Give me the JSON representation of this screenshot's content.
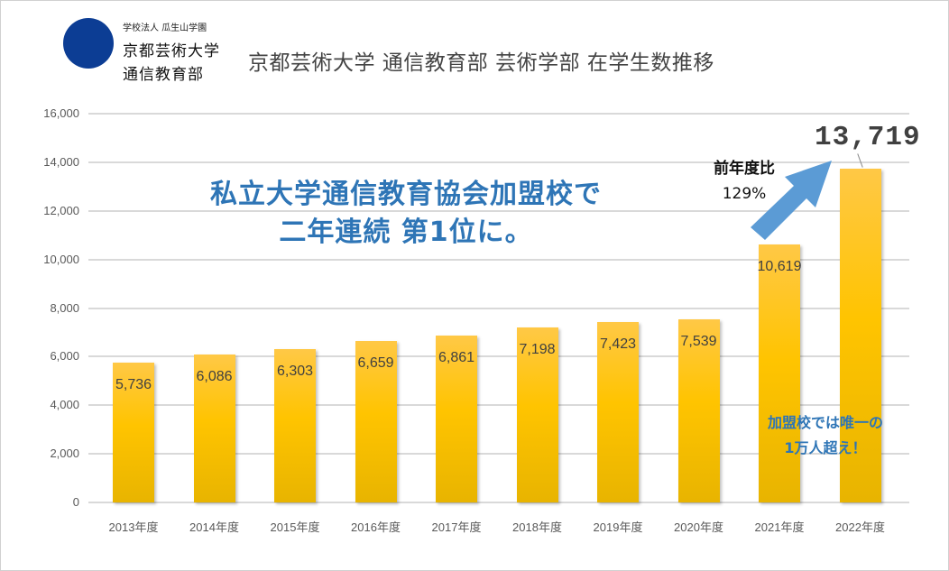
{
  "logo": {
    "small_text": "学校法人 瓜生山学園",
    "line1": "京都芸術大学",
    "line2": "通信教育部"
  },
  "title": "京都芸術大学 通信教育部 芸術学部 在学生数推移",
  "headline": {
    "line1": "私立大学通信教育協会加盟校で",
    "line2": "二年連続 第1位に。"
  },
  "ratio_callout": {
    "title": "前年度比",
    "value": "129%"
  },
  "note": {
    "line1": "加盟校では唯一の",
    "line2": "1万人超え！"
  },
  "highlight_value": "13,719",
  "colors": {
    "bar": "#ffc400",
    "accent_blue": "#2e75b6",
    "arrow": "#5b9bd5",
    "gridline": "#d9d9d9",
    "logo": "#0c3d94"
  },
  "y_ticks": [
    "0",
    "2,000",
    "4,000",
    "6,000",
    "8,000",
    "10,000",
    "12,000",
    "14,000",
    "16,000"
  ],
  "bars": [
    {
      "year": "2013年度",
      "label": "5,736"
    },
    {
      "year": "2014年度",
      "label": "6,086"
    },
    {
      "year": "2015年度",
      "label": "6,303"
    },
    {
      "year": "2016年度",
      "label": "6,659"
    },
    {
      "year": "2017年度",
      "label": "6,861"
    },
    {
      "year": "2018年度",
      "label": "7,198"
    },
    {
      "year": "2019年度",
      "label": "7,423"
    },
    {
      "year": "2020年度",
      "label": "7,539"
    },
    {
      "year": "2021年度",
      "label": "10,619"
    },
    {
      "year": "2022年度",
      "label": ""
    }
  ],
  "chart_data": {
    "type": "bar",
    "title": "京都芸術大学 通信教育部 芸術学部 在学生数推移",
    "xlabel": "",
    "ylabel": "",
    "categories": [
      "2013年度",
      "2014年度",
      "2015年度",
      "2016年度",
      "2017年度",
      "2018年度",
      "2019年度",
      "2020年度",
      "2021年度",
      "2022年度"
    ],
    "values": [
      5736,
      6086,
      6303,
      6659,
      6861,
      7198,
      7423,
      7539,
      10619,
      13719
    ],
    "ylim": [
      0,
      16000
    ],
    "yticks": [
      0,
      2000,
      4000,
      6000,
      8000,
      10000,
      12000,
      14000,
      16000
    ],
    "grid": true,
    "legend": "none",
    "annotations": [
      "私立大学通信教育協会加盟校で 二年連続 第1位に。",
      "前年度比 129%",
      "加盟校では唯一の 1万人超え！",
      "13,719"
    ]
  }
}
